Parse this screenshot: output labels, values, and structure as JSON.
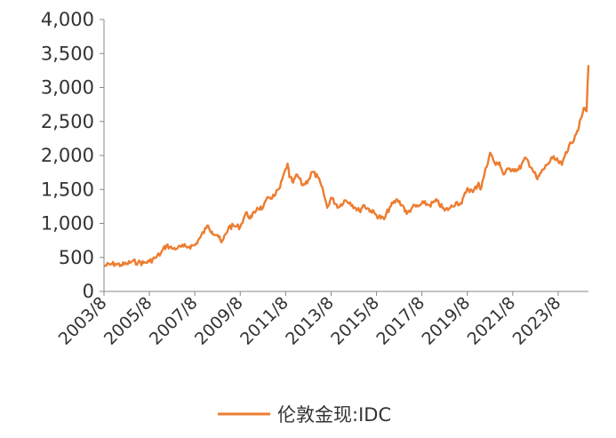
{
  "chart_data": {
    "type": "line",
    "title": "",
    "xlabel": "",
    "ylabel": "",
    "ylim": [
      0,
      4000
    ],
    "yticks": [
      "0",
      "500",
      "1,000",
      "1,500",
      "2,000",
      "2,500",
      "3,000",
      "3,500",
      "4,000"
    ],
    "ytick_values": [
      0,
      500,
      1000,
      1500,
      2000,
      2500,
      3000,
      3500,
      4000
    ],
    "xlim": [
      "2003-08",
      "2024-12"
    ],
    "xticks": [
      "2003/8",
      "2005/8",
      "2007/8",
      "2009/8",
      "2011/8",
      "2013/8",
      "2015/8",
      "2017/8",
      "2019/8",
      "2021/8",
      "2023/8"
    ],
    "xtick_dates": [
      "2003-08",
      "2005-08",
      "2007-08",
      "2009-08",
      "2011-08",
      "2013-08",
      "2015-08",
      "2017-08",
      "2019-08",
      "2021-08",
      "2023-08"
    ],
    "grid": false,
    "legend_position": "bottom",
    "series": [
      {
        "name": "伦敦金现:IDC",
        "color": "#ED7D31",
        "x": [
          "2003-08",
          "2003-11",
          "2004-02",
          "2004-05",
          "2004-08",
          "2004-11",
          "2005-02",
          "2005-05",
          "2005-08",
          "2005-11",
          "2006-02",
          "2006-05",
          "2006-08",
          "2006-11",
          "2007-02",
          "2007-05",
          "2007-08",
          "2007-11",
          "2008-02",
          "2008-03",
          "2008-05",
          "2008-08",
          "2008-10",
          "2008-11",
          "2009-02",
          "2009-05",
          "2009-08",
          "2009-11",
          "2009-12",
          "2010-02",
          "2010-05",
          "2010-08",
          "2010-11",
          "2011-02",
          "2011-05",
          "2011-08",
          "2011-09",
          "2011-10",
          "2011-12",
          "2012-02",
          "2012-05",
          "2012-08",
          "2012-10",
          "2013-01",
          "2013-04",
          "2013-06",
          "2013-08",
          "2013-12",
          "2014-03",
          "2014-06",
          "2014-09",
          "2014-11",
          "2015-01",
          "2015-05",
          "2015-08",
          "2015-12",
          "2016-03",
          "2016-07",
          "2016-10",
          "2016-12",
          "2017-03",
          "2017-06",
          "2017-09",
          "2017-12",
          "2018-04",
          "2018-08",
          "2018-11",
          "2019-02",
          "2019-05",
          "2019-08",
          "2019-11",
          "2020-02",
          "2020-03",
          "2020-05",
          "2020-08",
          "2020-11",
          "2021-01",
          "2021-03",
          "2021-06",
          "2021-08",
          "2021-11",
          "2022-03",
          "2022-06",
          "2022-09",
          "2022-11",
          "2023-02",
          "2023-05",
          "2023-08",
          "2023-10",
          "2023-12",
          "2024-03",
          "2024-05",
          "2024-07",
          "2024-09",
          "2024-10",
          "2024-11",
          "2024-12"
        ],
        "y": [
          375,
          395,
          405,
          390,
          405,
          440,
          425,
          420,
          440,
          490,
          560,
          680,
          630,
          640,
          660,
          660,
          680,
          800,
          930,
          970,
          880,
          830,
          720,
          760,
          950,
          960,
          950,
          1160,
          1110,
          1090,
          1230,
          1230,
          1380,
          1400,
          1530,
          1800,
          1880,
          1680,
          1600,
          1720,
          1560,
          1640,
          1760,
          1680,
          1450,
          1230,
          1380,
          1240,
          1340,
          1310,
          1230,
          1180,
          1270,
          1190,
          1120,
          1060,
          1240,
          1350,
          1260,
          1140,
          1240,
          1250,
          1300,
          1270,
          1330,
          1190,
          1230,
          1310,
          1290,
          1520,
          1460,
          1600,
          1500,
          1720,
          2040,
          1860,
          1900,
          1720,
          1800,
          1800,
          1790,
          1960,
          1820,
          1650,
          1750,
          1860,
          1960,
          1910,
          1860,
          2050,
          2180,
          2300,
          2430,
          2630,
          2700,
          2650,
          3330
        ]
      }
    ]
  }
}
